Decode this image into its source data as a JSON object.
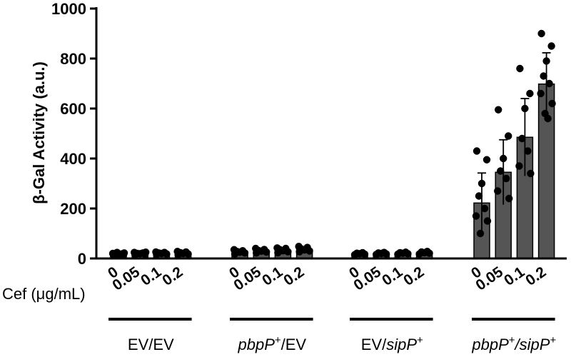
{
  "chart_data": {
    "type": "bar",
    "ylabel": "β-Gal Activity (a.u.)",
    "ylim": [
      0,
      1000
    ],
    "yticks": [
      "0",
      "200",
      "400",
      "600",
      "800",
      "1000"
    ],
    "dose_label": "Cef (μg/mL)",
    "doses": [
      "0",
      "0.05",
      "0.1",
      "0.2"
    ],
    "groups": [
      {
        "label": [
          {
            "t": "EV/EV",
            "i": false
          }
        ]
      },
      {
        "label": [
          {
            "t": "pbpP",
            "i": true
          },
          {
            "t": "+",
            "sup": true
          },
          {
            "t": "/EV",
            "i": false
          }
        ]
      },
      {
        "label": [
          {
            "t": "EV/",
            "i": false
          },
          {
            "t": "sipP",
            "i": true
          },
          {
            "t": "+",
            "sup": true
          }
        ]
      },
      {
        "label": [
          {
            "t": "pbpP",
            "i": true
          },
          {
            "t": "+",
            "sup": true
          },
          {
            "t": "/",
            "i": true
          },
          {
            "t": "sipP",
            "i": true
          },
          {
            "t": "+",
            "sup": true
          }
        ]
      }
    ],
    "bar_color": "#555555",
    "series": [
      {
        "group": "EV/EV",
        "bars": [
          {
            "dose": "0",
            "mean": 17,
            "sd": 5,
            "points": [
              12,
              14,
              16,
              17,
              18,
              20,
              22,
              24
            ]
          },
          {
            "dose": "0.05",
            "mean": 20,
            "sd": 4,
            "points": [
              15,
              17,
              19,
              20,
              22,
              24,
              25
            ]
          },
          {
            "dose": "0.1",
            "mean": 21,
            "sd": 4,
            "points": [
              16,
              18,
              20,
              22,
              24,
              26
            ]
          },
          {
            "dose": "0.2",
            "mean": 22,
            "sd": 5,
            "points": [
              15,
              18,
              20,
              23,
              26,
              28
            ]
          }
        ]
      },
      {
        "group": "pbpP+/EV",
        "bars": [
          {
            "dose": "0",
            "mean": 26,
            "sd": 6,
            "points": [
              18,
              22,
              25,
              28,
              31,
              35
            ]
          },
          {
            "dose": "0.05",
            "mean": 30,
            "sd": 6,
            "points": [
              22,
              26,
              29,
              32,
              36,
              40
            ]
          },
          {
            "dose": "0.1",
            "mean": 32,
            "sd": 7,
            "points": [
              23,
              27,
              31,
              35,
              40,
              42
            ]
          },
          {
            "dose": "0.2",
            "mean": 36,
            "sd": 7,
            "points": [
              27,
              30,
              34,
              38,
              44,
              48
            ]
          }
        ]
      },
      {
        "group": "EV/sipP+",
        "bars": [
          {
            "dose": "0",
            "mean": 19,
            "sd": 3,
            "points": [
              15,
              17,
              19,
              21,
              23
            ]
          },
          {
            "dose": "0.05",
            "mean": 20,
            "sd": 3,
            "points": [
              16,
              18,
              20,
              22,
              24
            ]
          },
          {
            "dose": "0.1",
            "mean": 21,
            "sd": 3,
            "points": [
              17,
              19,
              21,
              23,
              25
            ]
          },
          {
            "dose": "0.2",
            "mean": 23,
            "sd": 4,
            "points": [
              18,
              21,
              23,
              26,
              28
            ]
          }
        ]
      },
      {
        "group": "pbpP+/sipP+",
        "bars": [
          {
            "dose": "0",
            "mean": 222,
            "sd": 120,
            "points": [
              430,
              395,
              300,
              250,
              200,
              170,
              150,
              100
            ]
          },
          {
            "dose": "0.05",
            "mean": 345,
            "sd": 130,
            "points": [
              595,
              490,
              400,
              350,
              320,
              270,
              240
            ]
          },
          {
            "dose": "0.1",
            "mean": 485,
            "sd": 155,
            "points": [
              760,
              660,
              600,
              480,
              430,
              370,
              340
            ]
          },
          {
            "dose": "0.2",
            "mean": 698,
            "sd": 125,
            "points": [
              900,
              850,
              790,
              730,
              700,
              660,
              620,
              580,
              560
            ]
          }
        ]
      }
    ]
  }
}
